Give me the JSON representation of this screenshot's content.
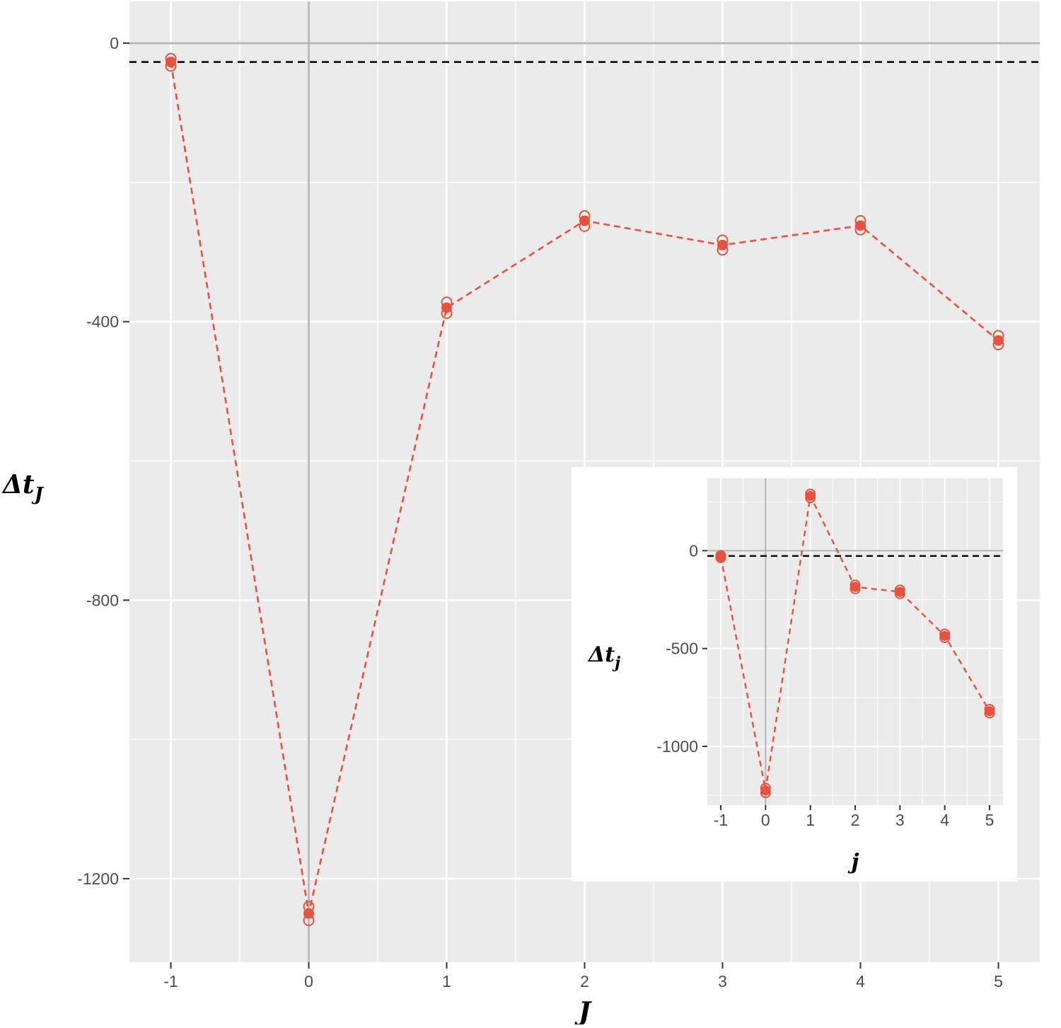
{
  "chart_data": [
    {
      "type": "line",
      "role": "main",
      "xlabel": {
        "base": "J",
        "sub": ""
      },
      "ylabel": {
        "base": "Δt",
        "sub": "J"
      },
      "x_ticks": [
        -1,
        0,
        1,
        2,
        3,
        4,
        5
      ],
      "y_ticks": [
        0,
        -400,
        -800,
        -1200
      ],
      "xlim": [
        -1.3,
        5.3
      ],
      "ylim": [
        -1320,
        60
      ],
      "reference_lines": {
        "horizontal_dashed": -27,
        "vertical_solid": 0,
        "horizontal_solid": 0
      },
      "colors": {
        "series": "#e8513d",
        "panel_bg": "#ebebeb",
        "grid": "#ffffff",
        "reference": "#000000",
        "zero_line": "#b3b3b3"
      },
      "series": [
        {
          "style": "dashed line with filled point",
          "x": [
            -1,
            0,
            1,
            2,
            3,
            4,
            5
          ],
          "y": [
            -27,
            -1250,
            -380,
            -255,
            -290,
            -262,
            -427
          ],
          "open_markers_upper": [
            -22,
            -1240,
            -372,
            -248,
            -283,
            -255,
            -420
          ],
          "open_markers_lower": [
            -33,
            -1260,
            -388,
            -263,
            -297,
            -268,
            -433
          ]
        }
      ]
    },
    {
      "type": "line",
      "role": "inset",
      "xlabel": {
        "base": "j",
        "sub": ""
      },
      "ylabel": {
        "base": "Δt",
        "sub": "j"
      },
      "x_ticks": [
        -1,
        0,
        1,
        2,
        3,
        4,
        5
      ],
      "y_ticks": [
        0,
        -500,
        -1000
      ],
      "xlim": [
        -1.3,
        5.3
      ],
      "ylim": [
        -1300,
        370
      ],
      "reference_lines": {
        "horizontal_dashed": -27,
        "vertical_solid": 0,
        "horizontal_solid": 0
      },
      "series": [
        {
          "style": "dashed line with filled point",
          "x": [
            -1,
            0,
            1,
            2,
            3,
            4,
            5
          ],
          "y": [
            -30,
            -1225,
            280,
            -185,
            -210,
            -435,
            -820
          ],
          "open_markers_upper": [
            -24,
            -1213,
            290,
            -175,
            -200,
            -425,
            -810
          ],
          "open_markers_lower": [
            -36,
            -1237,
            270,
            -195,
            -220,
            -445,
            -830
          ]
        }
      ]
    }
  ]
}
